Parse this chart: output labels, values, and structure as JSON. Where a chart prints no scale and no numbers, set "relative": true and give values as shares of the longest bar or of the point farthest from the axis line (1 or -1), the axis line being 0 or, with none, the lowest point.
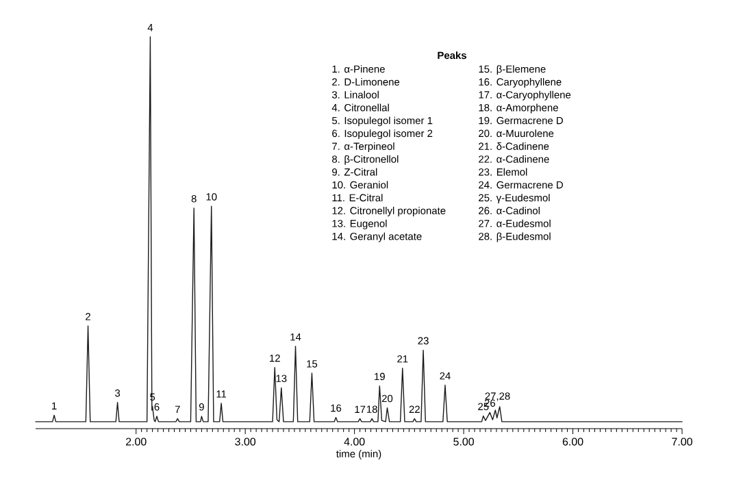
{
  "chart_data": {
    "type": "line",
    "relative": true,
    "xlabel": "time (min)",
    "xlim": [
      1.08,
      7.0
    ],
    "xticks": [
      {
        "value": 2,
        "label": "2.00"
      },
      {
        "value": 3,
        "label": "3.00"
      },
      {
        "value": 4,
        "label": "4.00"
      },
      {
        "value": 5,
        "label": "5.00"
      },
      {
        "value": 6,
        "label": "6.00"
      },
      {
        "value": 7,
        "label": "7.00"
      }
    ],
    "series": [
      {
        "color": "#1a1a1a",
        "x": [
          1.08,
          1.235,
          1.25,
          1.265,
          1.54,
          1.56,
          1.58,
          1.815,
          1.83,
          1.845,
          2.1,
          2.13,
          2.145,
          2.15,
          2.165,
          2.175,
          2.19,
          2.205,
          2.365,
          2.38,
          2.395,
          2.5,
          2.53,
          2.55,
          2.59,
          2.6,
          2.615,
          2.66,
          2.69,
          2.71,
          2.765,
          2.78,
          2.795,
          3.25,
          3.27,
          3.29,
          3.31,
          3.33,
          3.35,
          3.44,
          3.46,
          3.48,
          3.59,
          3.61,
          3.63,
          3.815,
          3.83,
          3.845,
          4.035,
          4.05,
          4.065,
          4.145,
          4.16,
          4.175,
          4.215,
          4.23,
          4.25,
          4.285,
          4.3,
          4.32,
          4.42,
          4.44,
          4.46,
          4.535,
          4.55,
          4.565,
          4.61,
          4.63,
          4.65,
          4.81,
          4.83,
          4.85,
          5.165,
          5.18,
          5.2,
          5.24,
          5.265,
          5.29,
          5.305,
          5.33,
          5.35,
          7.0
        ],
        "values": [
          0,
          0,
          0.017,
          0,
          0,
          0.249,
          0,
          0,
          0.05,
          0,
          0,
          1.0,
          0.03,
          0.04,
          0.005,
          0,
          0.014,
          0,
          0,
          0.008,
          0,
          0,
          0.555,
          0,
          0,
          0.014,
          0,
          0,
          0.56,
          0,
          0,
          0.048,
          0,
          0,
          0.141,
          0.005,
          0,
          0.088,
          0,
          0,
          0.196,
          0,
          0,
          0.126,
          0,
          0,
          0.011,
          0,
          0,
          0.008,
          0,
          0,
          0.008,
          0,
          0,
          0.093,
          0.003,
          0,
          0.036,
          0,
          0,
          0.139,
          0,
          0,
          0.008,
          0,
          0,
          0.186,
          0,
          0,
          0.095,
          0,
          0,
          0.015,
          0.003,
          0.024,
          0.005,
          0.03,
          0.01,
          0.039,
          0,
          0
        ]
      }
    ],
    "annotations": [
      {
        "text": "1",
        "x": 1.25,
        "y": 0.017
      },
      {
        "text": "2",
        "x": 1.56,
        "y": 0.249
      },
      {
        "text": "3",
        "x": 1.83,
        "y": 0.05
      },
      {
        "text": "4",
        "x": 2.13,
        "y": 1.0
      },
      {
        "text": "5",
        "x": 2.15,
        "y": 0.04
      },
      {
        "text": "6",
        "x": 2.19,
        "y": 0.014
      },
      {
        "text": "7",
        "x": 2.38,
        "y": 0.008
      },
      {
        "text": "8",
        "x": 2.53,
        "y": 0.555
      },
      {
        "text": "9",
        "x": 2.6,
        "y": 0.014
      },
      {
        "text": "10",
        "x": 2.69,
        "y": 0.56
      },
      {
        "text": "11",
        "x": 2.78,
        "y": 0.048
      },
      {
        "text": "12",
        "x": 3.27,
        "y": 0.141
      },
      {
        "text": "13",
        "x": 3.33,
        "y": 0.088
      },
      {
        "text": "14",
        "x": 3.46,
        "y": 0.196
      },
      {
        "text": "15",
        "x": 3.61,
        "y": 0.126
      },
      {
        "text": "16",
        "x": 3.83,
        "y": 0.011
      },
      {
        "text": "17",
        "x": 4.05,
        "y": 0.008
      },
      {
        "text": "18",
        "x": 4.16,
        "y": 0.008
      },
      {
        "text": "19",
        "x": 4.23,
        "y": 0.093
      },
      {
        "text": "20",
        "x": 4.3,
        "y": 0.036
      },
      {
        "text": "21",
        "x": 4.44,
        "y": 0.139
      },
      {
        "text": "22",
        "x": 4.55,
        "y": 0.008
      },
      {
        "text": "23",
        "x": 4.63,
        "y": 0.186
      },
      {
        "text": "24",
        "x": 4.83,
        "y": 0.095
      },
      {
        "text": "25",
        "x": 5.18,
        "y": 0.015
      },
      {
        "text": "26",
        "x": 5.24,
        "y": 0.024
      },
      {
        "text": "27,28",
        "x": 5.31,
        "y": 0.039
      },
      "Peaks",
      "1. α-Pinene",
      "2. D-Limonene",
      "3. Linalool",
      "4. Citronellal",
      "5. Isopulegol isomer 1",
      "6. Isopulegol isomer 2",
      "7. α-Terpineol",
      "8. β-Citronellol",
      "9. Z-Citral",
      "10. Geraniol",
      "11. E-Citral",
      "12. Citronellyl propionate",
      "13. Eugenol",
      "14. Geranyl acetate",
      "15. β-Elemene",
      "16. Caryophyllene",
      "17. α-Caryophyllene",
      "18. α-Amorphene",
      "19. Germacrene D",
      "20. α-Muurolene",
      "21. δ-Cadinene",
      "22. α-Cadinene",
      "23. Elemol",
      "24. Germacrene D",
      "25. γ-Eudesmol",
      "26. α-Cadinol",
      "27. α-Eudesmol",
      "28. β-Eudesmol"
    ]
  }
}
